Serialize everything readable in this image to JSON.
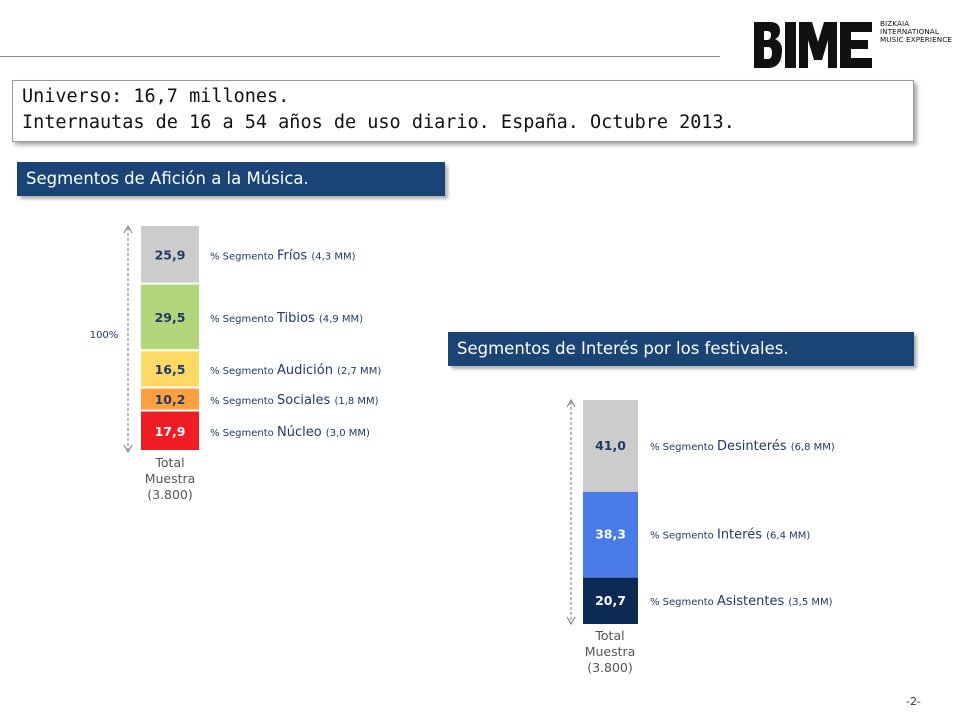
{
  "logo": {
    "wordmark": "BIME",
    "lines": [
      "BIZKAIA",
      "INTERNATIONAL",
      "MUSIC EXPERIENCE"
    ]
  },
  "universe": {
    "line1": "Universo: 16,7 millones.",
    "line2": "Internautas de 16 a 54 años de uso diario. España. Octubre 2013."
  },
  "section1": {
    "title": "Segmentos de Afición a la Música."
  },
  "section2": {
    "title": "Segmentos de Interés por los festivales."
  },
  "page_number": "-2-",
  "chart_data": [
    {
      "type": "bar",
      "stacked": true,
      "category": [
        "Total",
        "Muestra",
        "(3.800)"
      ],
      "axis_label": "100%",
      "label_prefix": "% Segmento",
      "segments_top_to_bottom": [
        {
          "value": 25.9,
          "value_label": "25,9",
          "name": "Fríos",
          "size_label": "(4,3 MM)",
          "color": "#cccccc",
          "text_color": "#1f3a68"
        },
        {
          "value": 29.5,
          "value_label": "29,5",
          "name": "Tibios",
          "size_label": "(4,9 MM)",
          "color": "#b2d67a",
          "text_color": "#1f3a68"
        },
        {
          "value": 16.5,
          "value_label": "16,5",
          "name": "Audición",
          "size_label": "(2,7 MM)",
          "color": "#ffd966",
          "text_color": "#1f3a68"
        },
        {
          "value": 10.2,
          "value_label": "10,2",
          "name": "Sociales",
          "size_label": "(1,8 MM)",
          "color": "#ffa040",
          "text_color": "#1f3a68"
        },
        {
          "value": 17.9,
          "value_label": "17,9",
          "name": "Núcleo",
          "size_label": "(3,0 MM)",
          "color": "#ee1c23",
          "text_color": "#ffffff"
        }
      ]
    },
    {
      "type": "bar",
      "stacked": true,
      "category": [
        "Total",
        "Muestra",
        "(3.800)"
      ],
      "label_prefix": "% Segmento",
      "segments_top_to_bottom": [
        {
          "value": 41.0,
          "value_label": "41,0",
          "name": "Desinterés",
          "size_label": "(6,8 MM)",
          "color": "#cccccc",
          "text_color": "#1f3a68"
        },
        {
          "value": 38.3,
          "value_label": "38,3",
          "name": "Interés",
          "size_label": "(6,4 MM)",
          "color": "#4a7ae8",
          "text_color": "#ffffff"
        },
        {
          "value": 20.7,
          "value_label": "20,7",
          "name": "Asistentes",
          "size_label": "(3,5 MM)",
          "color": "#0d2a55",
          "text_color": "#ffffff"
        }
      ]
    }
  ]
}
